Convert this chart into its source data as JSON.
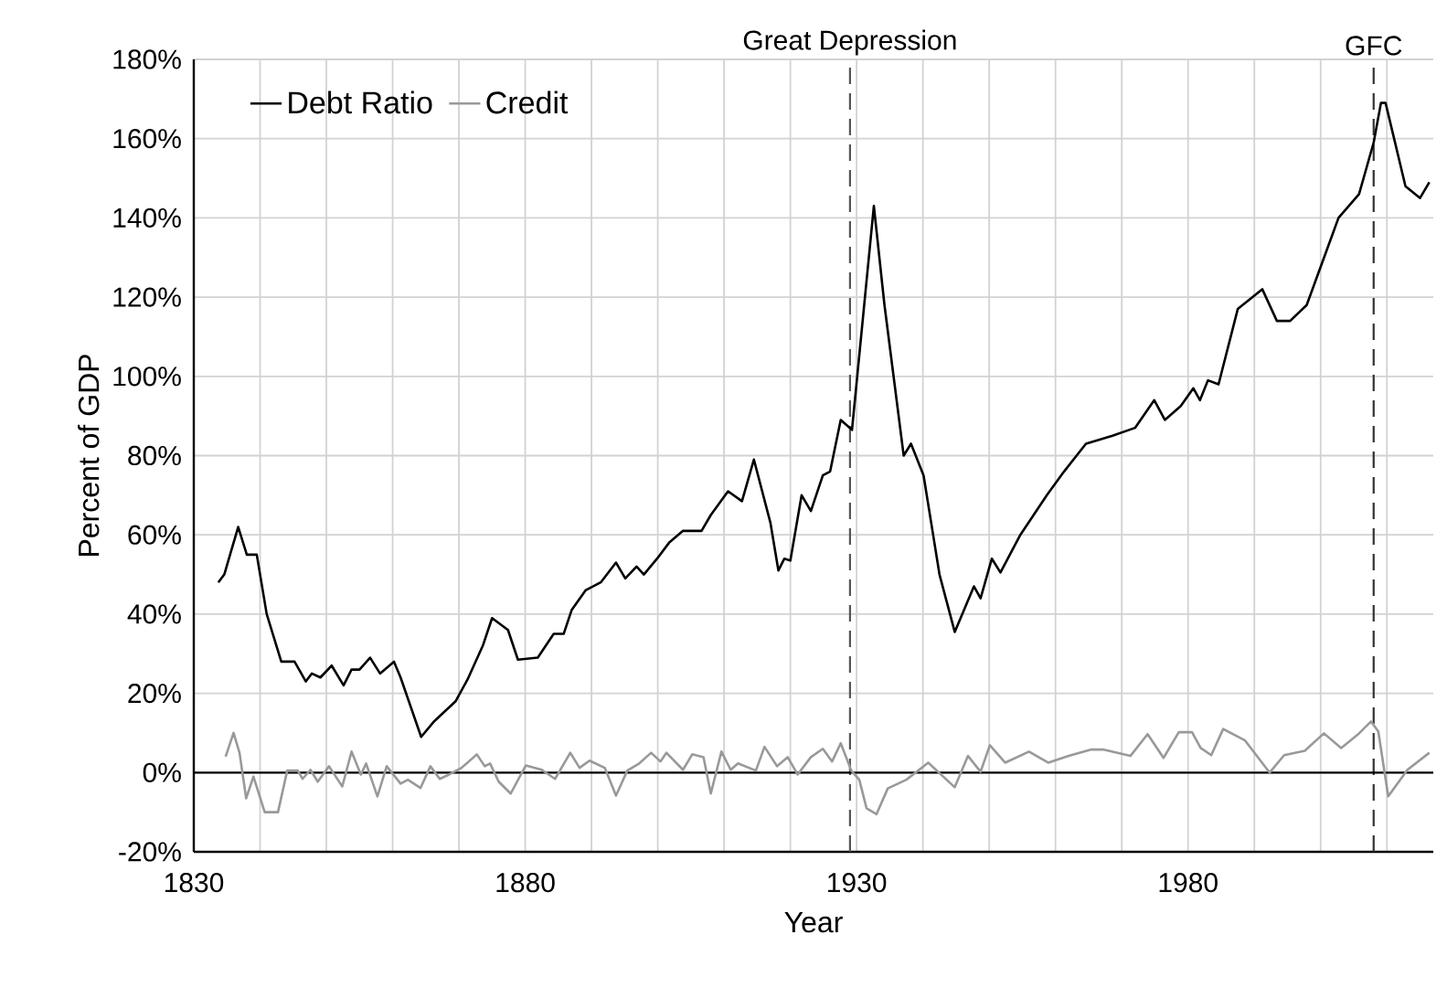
{
  "chart_data": {
    "type": "line",
    "xlabel": "Year",
    "ylabel": "Percent of GDP",
    "xlim": [
      1830,
      2017
    ],
    "ylim": [
      -20,
      180
    ],
    "xticks": [
      1830,
      {
        "value": 1840,
        "label": null
      },
      {
        "value": 1850,
        "label": null
      },
      {
        "value": 1860,
        "label": null
      },
      {
        "value": 1870,
        "label": null
      },
      1880,
      {
        "value": 1890,
        "label": null
      },
      {
        "value": 1900,
        "label": null
      },
      {
        "value": 1910,
        "label": null
      },
      {
        "value": 1920,
        "label": null
      },
      1930,
      {
        "value": 1940,
        "label": null
      },
      {
        "value": 1950,
        "label": null
      },
      {
        "value": 1960,
        "label": null
      },
      {
        "value": 1970,
        "label": null
      },
      1980,
      {
        "value": 1990,
        "label": null
      },
      {
        "value": 2000,
        "label": null
      },
      {
        "value": 2010,
        "label": null
      }
    ],
    "yticks": [
      {
        "value": -20,
        "label": "-20%"
      },
      {
        "value": 0,
        "label": "0%"
      },
      {
        "value": 20,
        "label": "20%"
      },
      {
        "value": 40,
        "label": "40%"
      },
      {
        "value": 60,
        "label": "60%"
      },
      {
        "value": 80,
        "label": "80%"
      },
      {
        "value": 100,
        "label": "100%"
      },
      {
        "value": 120,
        "label": "120%"
      },
      {
        "value": 140,
        "label": "140%"
      },
      {
        "value": 160,
        "label": "160%"
      },
      {
        "value": 180,
        "label": "180%"
      }
    ],
    "grid": true,
    "legend": "top left",
    "series": [
      {
        "name": "Debt Ratio",
        "color": "#000000",
        "x": [
          1833.7,
          1834.6,
          1836.7,
          1838,
          1839.5,
          1841,
          1843.2,
          1845.2,
          1846.9,
          1847.8,
          1849.1,
          1850.8,
          1852.6,
          1853.8,
          1855,
          1856.6,
          1858.1,
          1860.2,
          1861.2,
          1864.3,
          1866.3,
          1869.5,
          1871.3,
          1873.6,
          1875,
          1877.4,
          1878.9,
          1881.9,
          1884.3,
          1885.8,
          1887,
          1889.1,
          1891.4,
          1893.7,
          1895.1,
          1896.8,
          1897.9,
          1899.9,
          1901.7,
          1903.8,
          1906.6,
          1908,
          1910.6,
          1912.7,
          1914.5,
          1917,
          1918.2,
          1919.1,
          1920,
          1921.7,
          1923.1,
          1924.9,
          1926,
          1927.6,
          1929.3,
          1932.6,
          1934.2,
          1937.1,
          1938.2,
          1940.1,
          1942.5,
          1944.8,
          1947.7,
          1948.7,
          1950.4,
          1951.7,
          1954.7,
          1958.7,
          1961.3,
          1964.6,
          1968.6,
          1972,
          1974.9,
          1976.5,
          1978.9,
          1980.8,
          1981.8,
          1983,
          1984.6,
          1987.5,
          1991.2,
          1993.4,
          1995.4,
          1997.9,
          2002.7,
          2005.8,
          2008,
          2009.1,
          2009.8,
          2012.8,
          2015,
          2016.4
        ],
        "values": [
          48,
          50,
          62,
          55,
          55,
          40,
          28,
          28,
          23,
          25,
          24,
          27,
          22,
          26,
          26,
          29,
          25,
          28,
          24,
          9,
          13,
          18,
          23.5,
          32,
          39,
          36,
          28.5,
          29,
          35,
          35,
          41,
          46,
          48,
          53,
          49,
          52,
          50,
          54,
          58,
          61,
          61,
          65,
          71,
          68.5,
          79,
          63,
          51,
          54,
          53.5,
          70,
          66,
          75,
          76,
          89,
          86.5,
          143,
          118,
          80,
          83,
          75,
          50,
          35.5,
          47,
          44,
          54,
          50.5,
          60,
          70,
          76,
          83,
          85,
          87,
          94,
          89,
          92.5,
          97,
          94,
          99,
          98,
          117,
          122,
          114,
          114,
          118,
          140,
          146,
          159,
          169,
          169,
          148,
          145,
          149
        ]
      },
      {
        "name": "Credit",
        "color": "#999999",
        "x": [
          1834.8,
          1836,
          1836.9,
          1837.9,
          1839,
          1840.7,
          1842.7,
          1844.1,
          1845.7,
          1846.4,
          1847.6,
          1848.7,
          1850.4,
          1852.4,
          1853.8,
          1855.2,
          1856,
          1857.7,
          1859.1,
          1861.2,
          1862.3,
          1864.2,
          1865.7,
          1867.1,
          1868.5,
          1870.4,
          1872.7,
          1873.9,
          1874.7,
          1876,
          1877.8,
          1880.1,
          1882.5,
          1884.5,
          1886.8,
          1888.2,
          1889.7,
          1892,
          1893.7,
          1895.4,
          1897.2,
          1899,
          1900.4,
          1901.3,
          1903.8,
          1905.2,
          1906.9,
          1908,
          1909.6,
          1911,
          1912.1,
          1914.8,
          1916.1,
          1918,
          1919.6,
          1921.1,
          1923.1,
          1924.9,
          1926.3,
          1927.6,
          1929.2,
          1930.4,
          1931.5,
          1933,
          1934.7,
          1937.5,
          1940.8,
          1944.8,
          1946.8,
          1948.7,
          1950.1,
          1952.4,
          1956,
          1958.9,
          1962,
          1965.3,
          1967.3,
          1971.3,
          1973.9,
          1976.3,
          1978.6,
          1980.6,
          1981.9,
          1983.5,
          1985.3,
          1988.6,
          1992.3,
          1994.5,
          1997.6,
          2000.5,
          2003.1,
          2005.8,
          2007.6,
          2008.7,
          2010.2,
          2013.1,
          2016.4
        ],
        "values": [
          4,
          10,
          5,
          -6.5,
          -1,
          -10,
          -10,
          0.5,
          0.5,
          -1.6,
          0.7,
          -2.3,
          1.6,
          -3.5,
          5.3,
          -0.5,
          2.3,
          -6,
          1.6,
          -2.8,
          -1.8,
          -3.9,
          1.6,
          -1.6,
          -0.5,
          1.2,
          4.6,
          1.6,
          2.3,
          -2.3,
          -5.3,
          1.8,
          0.7,
          -1.6,
          5,
          1.2,
          3,
          1.2,
          -5.8,
          0.5,
          2.3,
          5,
          2.8,
          5,
          0.7,
          4.6,
          3.9,
          -5.3,
          5.3,
          0.7,
          2.3,
          0.5,
          6.5,
          1.6,
          3.9,
          -0.5,
          3.9,
          6,
          2.8,
          7.4,
          0.5,
          -1.8,
          -9,
          -10.5,
          -4,
          -1.8,
          2.5,
          -3.7,
          4.2,
          0.2,
          6.9,
          2.5,
          5.3,
          2.5,
          4.2,
          5.8,
          5.8,
          4.2,
          9.7,
          3.7,
          10.2,
          10.2,
          6.2,
          4.4,
          11,
          8.1,
          0,
          4.4,
          5.5,
          9.9,
          6.2,
          9.9,
          12.9,
          10.4,
          -6,
          0.7,
          5
        ]
      }
    ],
    "ref_lines": [
      {
        "axis": "x",
        "value": 1929,
        "label": "Great Depression",
        "color": "#555555",
        "line_style": "dashed"
      },
      {
        "axis": "x",
        "value": 2008,
        "label": "GFC",
        "color": "#333333",
        "line_style": "dashed"
      },
      {
        "axis": "y",
        "value": 0,
        "color": "#000000",
        "line_style": "solid"
      }
    ]
  }
}
